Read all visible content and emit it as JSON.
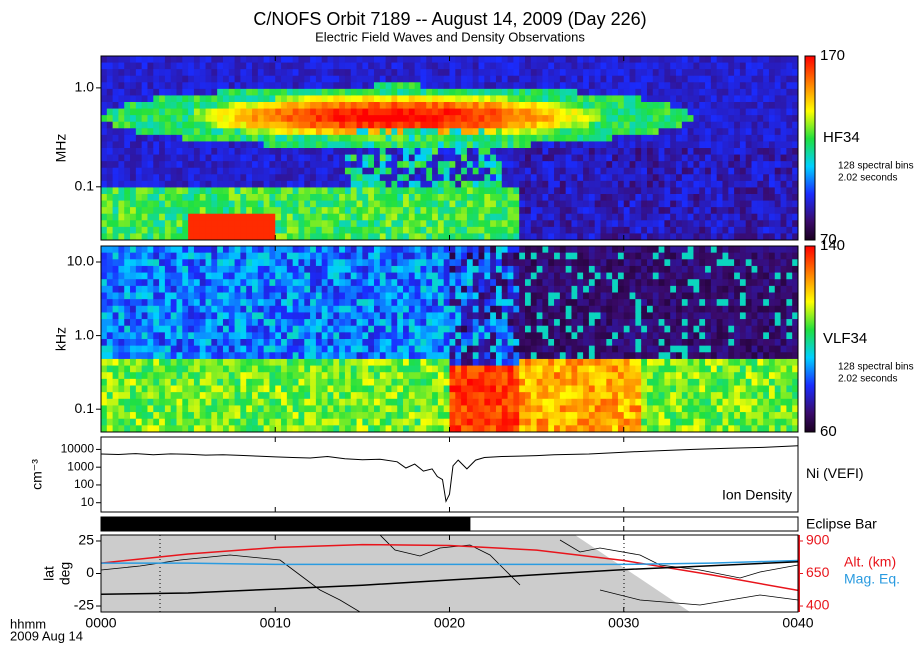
{
  "header": {
    "title": "C/NOFS Orbit 7189 -- August 14, 2009 (Day 226)",
    "subtitle": "Electric Field Waves and Density Observations"
  },
  "chart_data": [
    {
      "type": "spectrogram",
      "ylabel": "MHz",
      "log": true,
      "ylim": [
        0.029,
        2.1
      ],
      "yticks": [
        {
          "value": 1,
          "label": "1.0"
        },
        0.1
      ],
      "colorbar": {
        "name": "HF34",
        "clim": [
          70,
          170
        ],
        "ticks": [
          70,
          170
        ],
        "note": [
          "128 spectral bins",
          "2.02 seconds"
        ]
      }
    },
    {
      "type": "spectrogram",
      "ylabel": "kHz",
      "log": true,
      "ylim": [
        0.049,
        16.5
      ],
      "yticks": [
        {
          "value": 10,
          "label": "10.0"
        },
        {
          "value": 1,
          "label": "1.0"
        },
        0.1
      ],
      "colorbar": {
        "name": "VLF34",
        "clim": [
          60,
          140
        ],
        "ticks": [
          60,
          140
        ],
        "note": [
          "128 spectral bins",
          "2.02 seconds"
        ]
      }
    },
    {
      "type": "line",
      "ylabel": "cm⁻³",
      "log": true,
      "ylim": [
        3,
        50000
      ],
      "yticks": [
        10,
        100,
        1000,
        10000
      ],
      "annotation": "Ion Density",
      "series": [
        {
          "name": "Ni (VEFI)",
          "color": "#000000",
          "x": [
            0,
            1,
            2,
            3,
            4,
            5,
            6,
            7,
            8,
            9,
            10,
            11,
            12,
            13,
            14,
            15,
            16,
            17,
            17.5,
            18,
            18.5,
            19,
            19.3,
            19.6,
            19.8,
            20,
            20.2,
            20.5,
            21,
            21.5,
            22,
            23,
            24,
            25,
            26,
            28,
            30,
            32,
            34,
            36,
            38,
            40
          ],
          "values": [
            5500,
            5200,
            5800,
            5000,
            5600,
            5300,
            4800,
            5000,
            4600,
            4200,
            3800,
            3500,
            3300,
            4000,
            3000,
            2600,
            2800,
            2000,
            900,
            1500,
            600,
            800,
            300,
            200,
            12,
            30,
            1200,
            2500,
            800,
            2500,
            3500,
            4000,
            4200,
            4500,
            5000,
            5500,
            7000,
            8500,
            10000,
            11500,
            13000,
            16000
          ]
        }
      ]
    },
    {
      "type": "eclipse",
      "name": "Eclipse Bar",
      "start": 0,
      "end": 21.2,
      "color": "#000000"
    },
    {
      "type": "map",
      "ylabel": [
        "lat",
        "deg"
      ],
      "ylim": [
        -29.6,
        29.6
      ],
      "yticks": [
        25,
        0,
        -25
      ],
      "y2lim": [
        354,
        946
      ],
      "y2ticks": [
        900,
        650,
        400
      ],
      "y2color": "#e8141b",
      "xlim": [
        0,
        40
      ],
      "xticks": [
        {
          "value": 0,
          "label": "0000"
        },
        {
          "value": 10,
          "label": "0010"
        },
        {
          "value": 20,
          "label": "0020"
        },
        {
          "value": 30,
          "label": "0030"
        },
        {
          "value": 40,
          "label": "0040"
        }
      ],
      "xlabel": "hhmm",
      "date": "2009 Aug 14",
      "series": [
        {
          "name": "Alt. (km)",
          "color": "#e8141b",
          "axis": "y2",
          "x": [
            0,
            5,
            10,
            15,
            20,
            25,
            30,
            35,
            40
          ],
          "values": [
            730,
            800,
            850,
            872,
            865,
            830,
            750,
            640,
            520
          ]
        },
        {
          "name": "Mag. Eq.",
          "color": "#2a9be0",
          "x": [
            0,
            5,
            10,
            15,
            20,
            25,
            30,
            35,
            40
          ],
          "values": [
            8,
            8,
            7,
            7,
            7,
            7,
            7,
            8,
            10
          ]
        },
        {
          "color": "#000000",
          "x": [
            0,
            5,
            10,
            15,
            20,
            25,
            30,
            35,
            40
          ],
          "values": [
            -16,
            -15,
            -12,
            -9,
            -5,
            -1,
            3,
            6,
            9
          ]
        }
      ]
    }
  ]
}
